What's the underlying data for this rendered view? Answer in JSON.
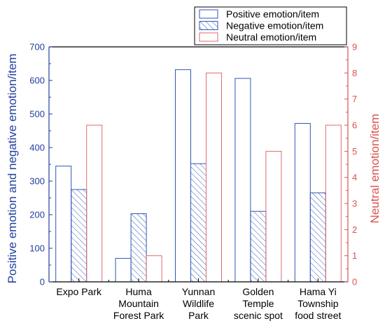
{
  "colors": {
    "positive": "#2f56b5",
    "negative": "#2f56b5",
    "neutral": "#e06a6a",
    "left_axis": "#1f3f9e",
    "right_axis": "#d9534f",
    "text": "#000000"
  },
  "chart_data": {
    "type": "bar",
    "categories": [
      [
        "Expo Park"
      ],
      [
        "Huma",
        "Mountain",
        "Forest Park"
      ],
      [
        "Yunnan",
        "Wildlife",
        "Park"
      ],
      [
        "Golden",
        "Temple",
        "scenic spot"
      ],
      [
        "Hama Yi",
        "Township",
        "food street"
      ]
    ],
    "series": [
      {
        "name": "Positive emotion/item",
        "axis": "left",
        "style": "hollow",
        "values": [
          345,
          70,
          632,
          606,
          472
        ]
      },
      {
        "name": "Negative emotion/item",
        "axis": "left",
        "style": "hatched",
        "values": [
          275,
          203,
          352,
          210,
          265
        ]
      },
      {
        "name": "Neutral emotion/item",
        "axis": "right",
        "style": "hollow",
        "values": [
          6,
          1,
          8,
          5,
          6
        ]
      }
    ],
    "y_left": {
      "label": "Positive emotion and negative emotion/item",
      "ylim": [
        0,
        700
      ],
      "ticks": [
        "0",
        "100",
        "200",
        "300",
        "400",
        "500",
        "600",
        "700"
      ]
    },
    "y_right": {
      "label": "Neutral emotion/item",
      "ylim": [
        0,
        9
      ],
      "ticks": [
        "0",
        "1",
        "2",
        "3",
        "4",
        "5",
        "6",
        "7",
        "8",
        "9"
      ]
    },
    "legend_position": "top-right",
    "grid": false
  }
}
